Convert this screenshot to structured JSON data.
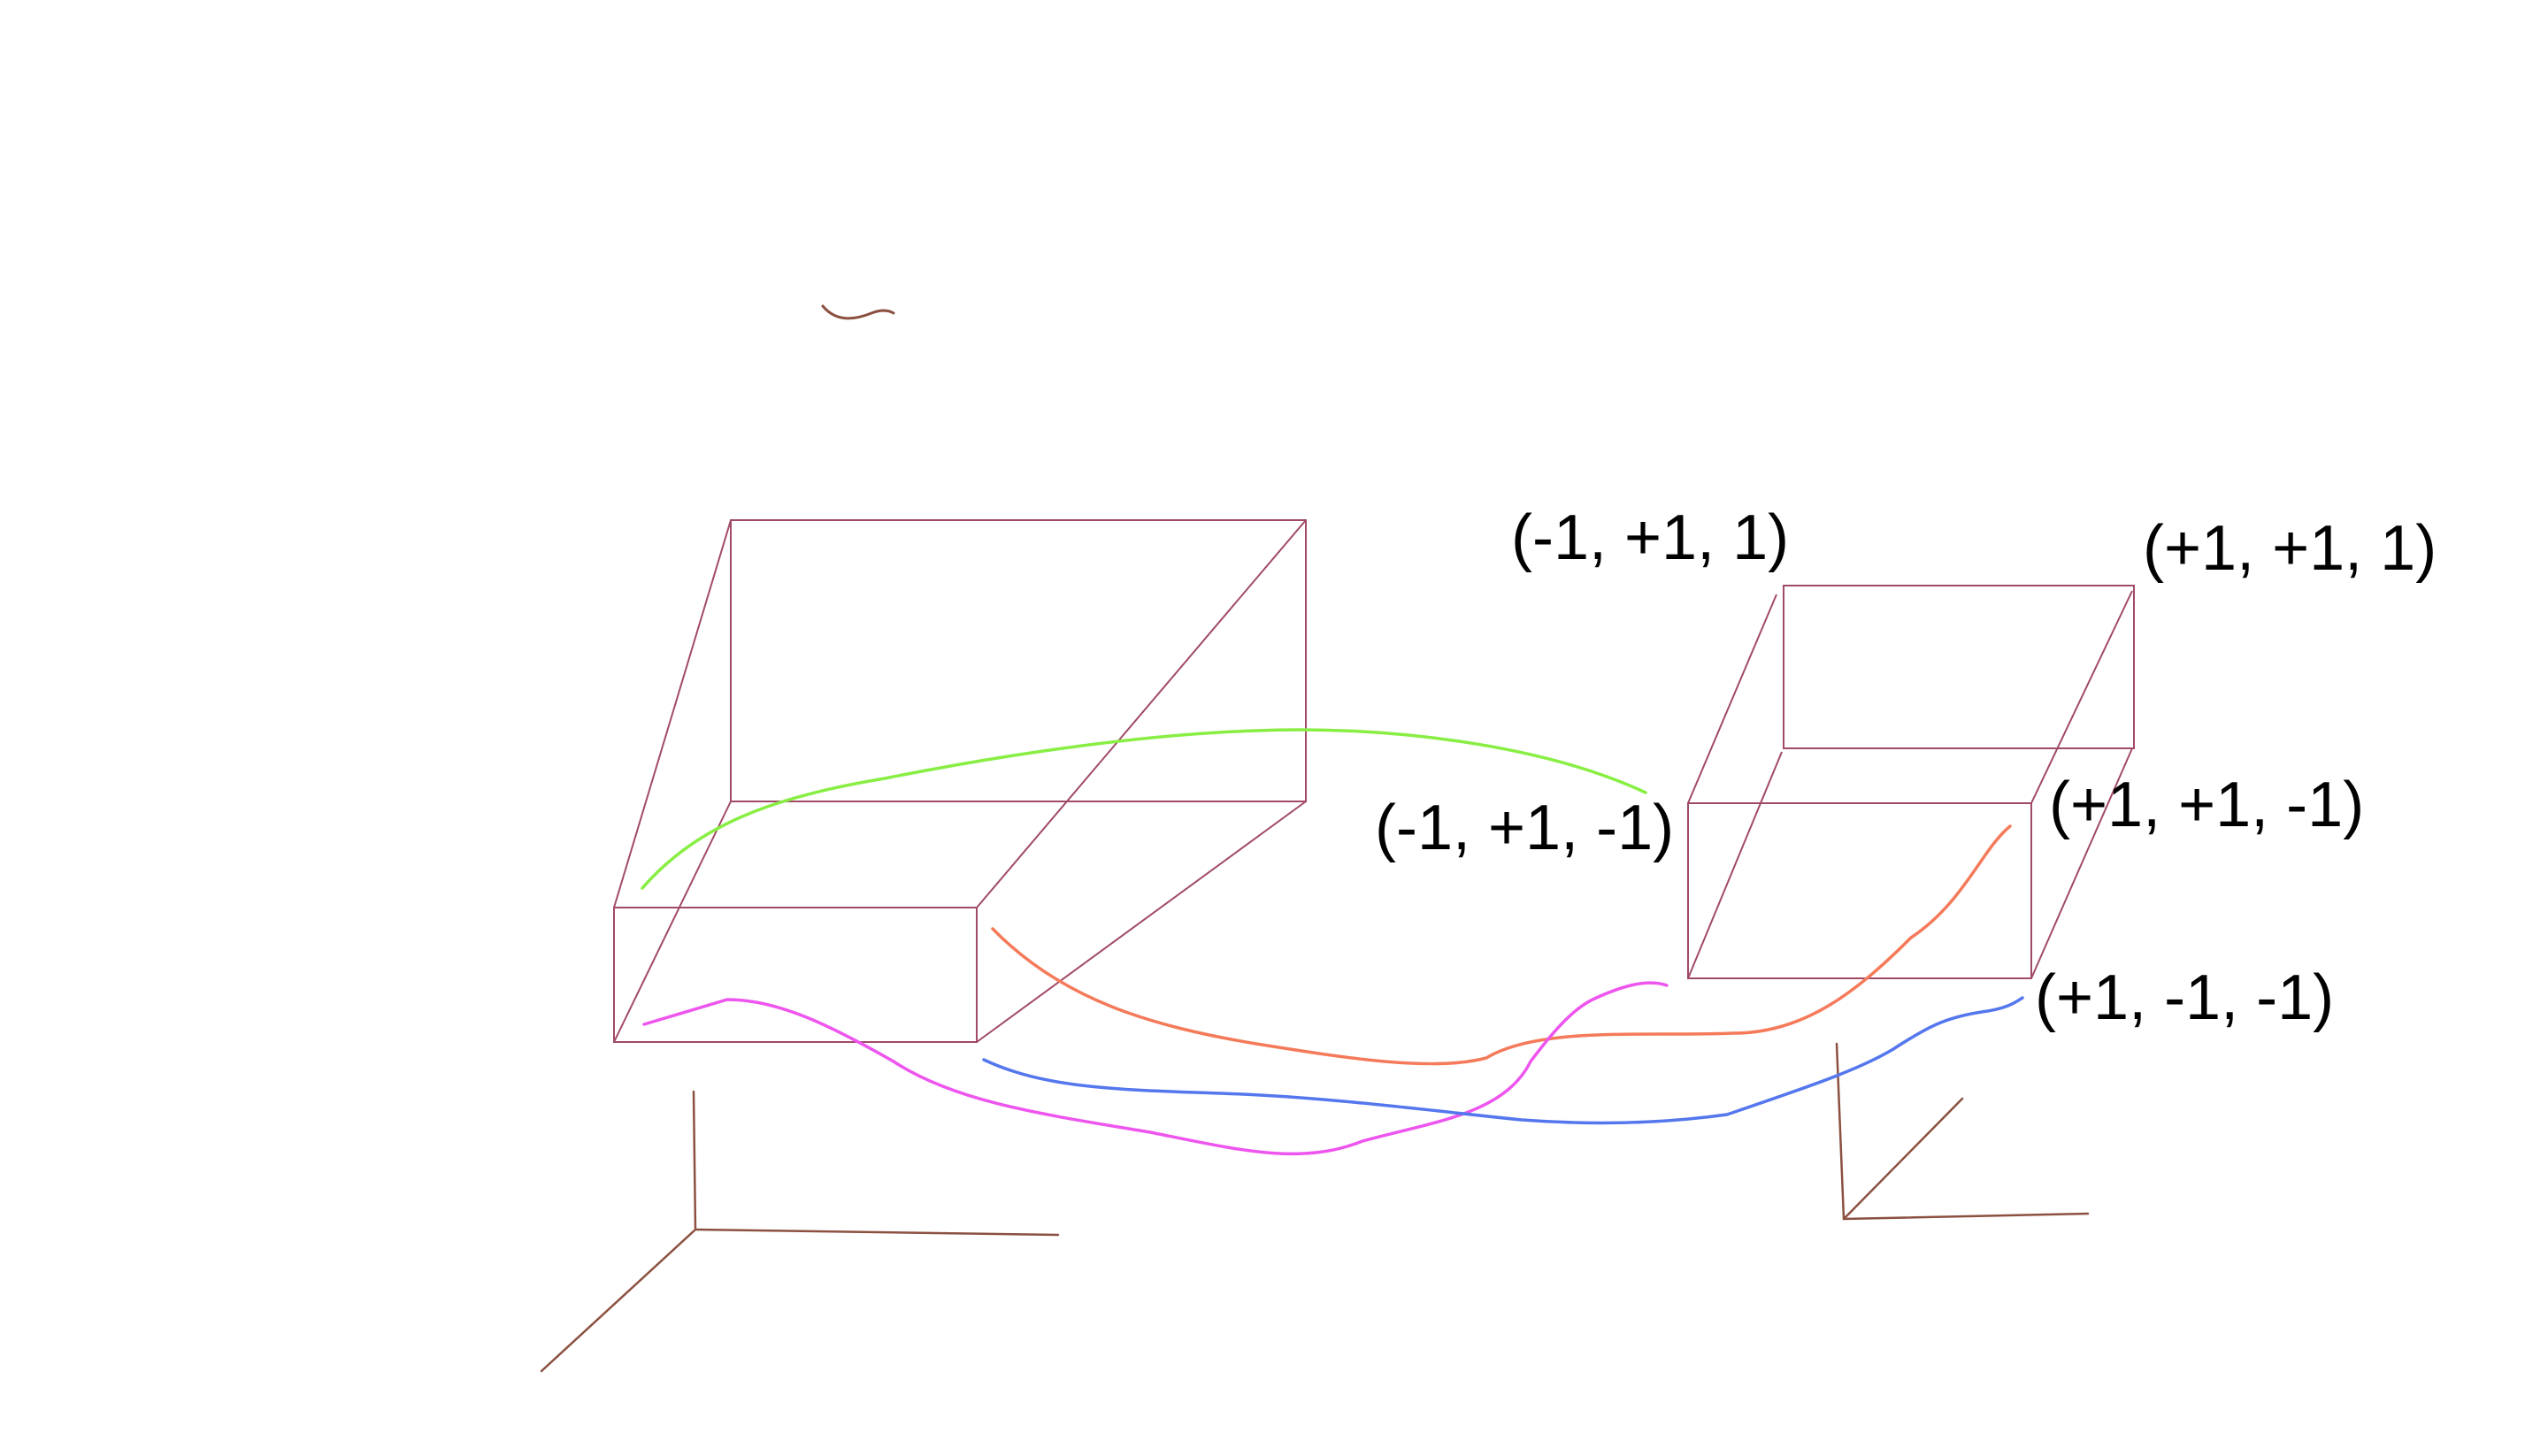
{
  "colors": {
    "background": "#ffffff",
    "box": "#a14a68",
    "axes": "#8b5040",
    "green_curve": "#88ee44",
    "orange_curve": "#f47a5a",
    "magenta_curve": "#ee55ee",
    "blue_curve": "#5577ee",
    "label_text": "#000000"
  },
  "labels": {
    "corner_a": "(-1, +1, 1)",
    "corner_b": "(+1, +1, 1)",
    "corner_c": "(-1, +1, -1)",
    "corner_d": "(+1, +1, -1)",
    "corner_e": "(+1, -1, -1)"
  }
}
